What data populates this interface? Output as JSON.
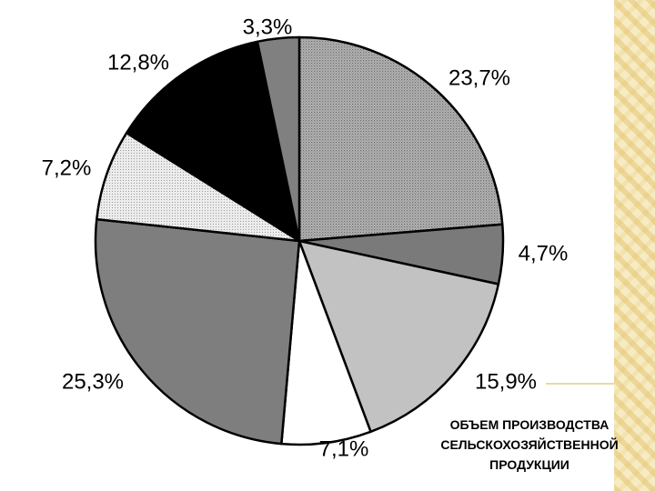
{
  "chart_data": {
    "type": "pie",
    "title": "ОБЪЕМ ПРОИЗВОДСТВА\nСЕЛЬСКОХОЗЯЙСТВЕННОЙ\nПРОДУКЦИИ",
    "slices": [
      {
        "label": "23,7%",
        "value": 23.7,
        "color": "#9a9a9a",
        "pattern": "dots"
      },
      {
        "label": "4,7%",
        "value": 4.7,
        "color": "#7a7a7a",
        "pattern": "solid"
      },
      {
        "label": "15,9%",
        "value": 15.9,
        "color": "#c2c2c2",
        "pattern": "solid"
      },
      {
        "label": "7,1%",
        "value": 7.1,
        "color": "#ffffff",
        "pattern": "solid"
      },
      {
        "label": "25,3%",
        "value": 25.3,
        "color": "#7e7e7e",
        "pattern": "solid"
      },
      {
        "label": "7,2%",
        "value": 7.2,
        "color": "#dcdcdc",
        "pattern": "dots"
      },
      {
        "label": "12,8%",
        "value": 12.8,
        "color": "#000000",
        "pattern": "solid"
      },
      {
        "label": "3,3%",
        "value": 3.3,
        "color": "#808080",
        "pattern": "solid"
      }
    ]
  }
}
